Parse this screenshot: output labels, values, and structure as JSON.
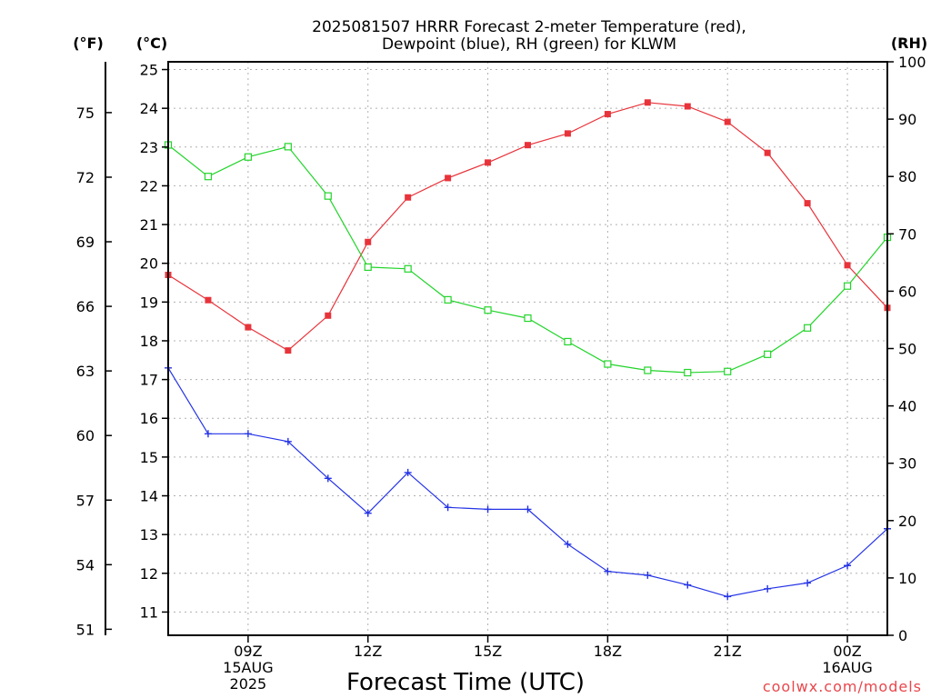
{
  "title_line1": "2025081507 HRRR Forecast 2-meter Temperature (red),",
  "title_line2": "Dewpoint (blue), RH (green) for KLWM",
  "unit_f": "(°F)",
  "unit_c": "(°C)",
  "unit_rh": "(RH)",
  "credit": "coolwx.com/models",
  "chart_data": {
    "type": "line",
    "xlabel": "Forecast Time (UTC)",
    "x_hours": [
      7,
      8,
      9,
      10,
      11,
      12,
      13,
      14,
      15,
      16,
      17,
      18,
      19,
      20,
      21,
      22,
      23,
      24,
      25
    ],
    "xlim": [
      7,
      25
    ],
    "x_ticks": [
      {
        "hour": 9,
        "lines": [
          "09Z",
          "15AUG",
          "2025"
        ]
      },
      {
        "hour": 12,
        "lines": [
          "12Z"
        ]
      },
      {
        "hour": 15,
        "lines": [
          "15Z"
        ]
      },
      {
        "hour": 18,
        "lines": [
          "18Z"
        ]
      },
      {
        "hour": 21,
        "lines": [
          "21Z"
        ]
      },
      {
        "hour": 24,
        "lines": [
          "00Z",
          "16AUG"
        ]
      }
    ],
    "ylim_c": [
      10.4,
      25.2
    ],
    "y_ticks_c": [
      11,
      12,
      13,
      14,
      15,
      16,
      17,
      18,
      19,
      20,
      21,
      22,
      23,
      24,
      25
    ],
    "y_ticks_f": [
      51,
      54,
      57,
      60,
      63,
      66,
      69,
      72,
      75
    ],
    "ylim_rh": [
      0,
      100
    ],
    "y_ticks_rh": [
      0,
      10,
      20,
      30,
      40,
      50,
      60,
      70,
      80,
      90,
      100
    ],
    "grid": true,
    "series": [
      {
        "name": "Temperature",
        "color": "#e8333a",
        "marker": "filled-square",
        "axis": "c",
        "values": [
          19.7,
          19.05,
          18.35,
          17.75,
          18.65,
          20.55,
          21.7,
          22.2,
          22.6,
          23.05,
          23.35,
          23.85,
          24.15,
          24.05,
          23.65,
          22.85,
          21.55,
          19.95,
          18.85
        ]
      },
      {
        "name": "Dewpoint",
        "color": "#2433e6",
        "marker": "plus",
        "axis": "c",
        "values": [
          17.3,
          15.6,
          15.6,
          15.4,
          14.45,
          13.55,
          14.6,
          13.7,
          13.65,
          13.65,
          12.75,
          12.05,
          11.95,
          11.7,
          11.4,
          11.6,
          11.75,
          12.2,
          13.15
        ]
      },
      {
        "name": "RH",
        "color": "#22d42a",
        "marker": "open-square",
        "axis": "rh",
        "values": [
          85.5,
          80,
          83.4,
          85.2,
          76.6,
          64.2,
          63.9,
          58.5,
          56.7,
          55.3,
          51.2,
          47.3,
          46.2,
          45.8,
          46,
          49,
          53.6,
          60.9,
          69.4
        ]
      }
    ]
  }
}
